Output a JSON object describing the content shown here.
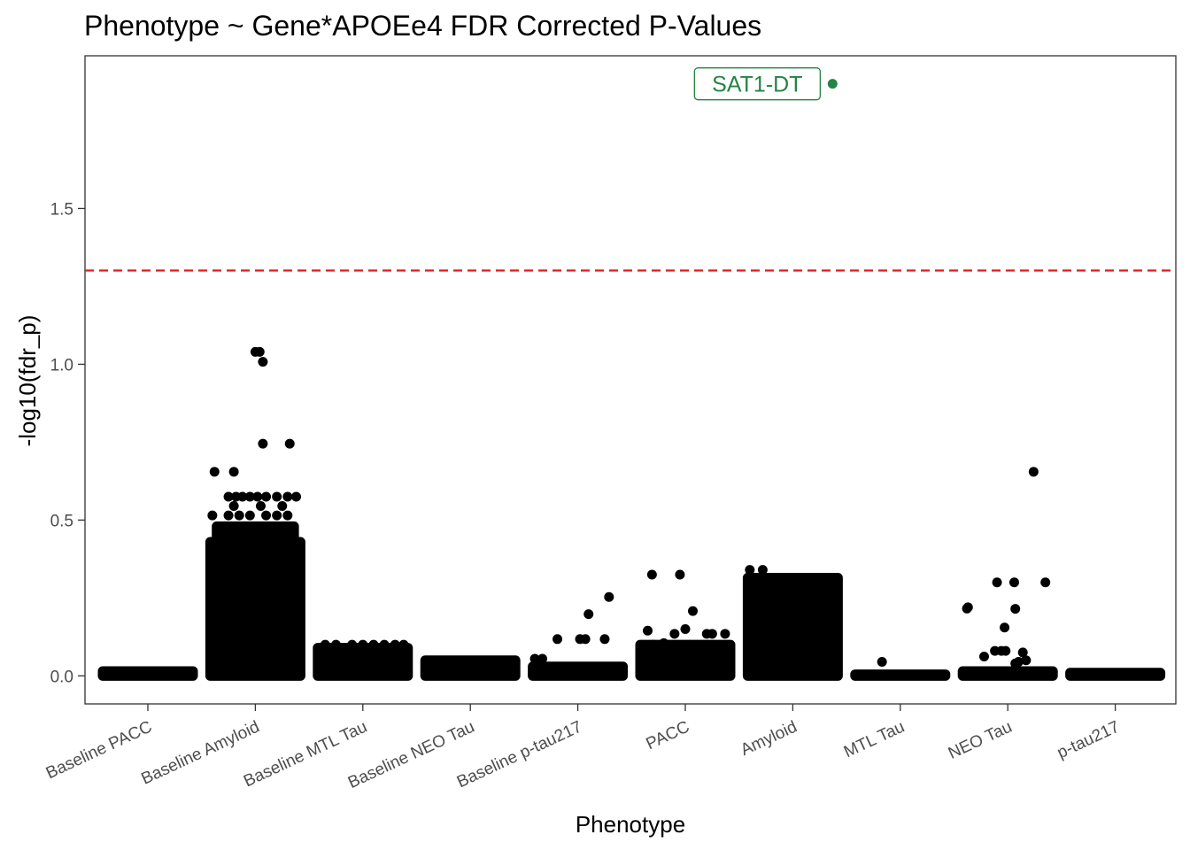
{
  "chart_data": {
    "type": "scatter",
    "title": "Phenotype ~ Gene*APOEe4 FDR Corrected P-Values",
    "xlabel": "Phenotype",
    "ylabel": "-log10(fdr_p)",
    "ylim": [
      -0.09,
      1.99
    ],
    "yticks": [
      0.0,
      0.5,
      1.0,
      1.5
    ],
    "ytick_labels": [
      "0.0",
      "0.5",
      "1.0",
      "1.5"
    ],
    "grid": false,
    "legend": "none",
    "categories": [
      "Baseline PACC",
      "Baseline Amyloid",
      "Baseline MTL Tau",
      "Baseline NEO Tau",
      "Baseline p-tau217",
      "PACC",
      "Amyloid",
      "MTL Tau",
      "NEO Tau",
      "p-tau217"
    ],
    "threshold": {
      "value": 1.301,
      "color": "#e31a1c",
      "style": "dashed"
    },
    "point_color": "#000000",
    "highlight_color": "#238443",
    "series": [
      {
        "category": "Baseline PACC",
        "mass": [
          {
            "ymin": 0.0,
            "ymax": 0.015,
            "jitter": 0.42
          }
        ],
        "points": []
      },
      {
        "category": "Baseline Amyloid",
        "mass": [
          {
            "ymin": 0.0,
            "ymax": 0.43,
            "jitter": 0.42
          },
          {
            "ymin": 0.43,
            "ymax": 0.48,
            "jitter": 0.36
          }
        ],
        "points": [
          {
            "dx": -0.25,
            "y": 0.575
          },
          {
            "dx": -0.18,
            "y": 0.575
          },
          {
            "dx": -0.12,
            "y": 0.575
          },
          {
            "dx": -0.05,
            "y": 0.575
          },
          {
            "dx": 0.02,
            "y": 0.575
          },
          {
            "dx": 0.1,
            "y": 0.575
          },
          {
            "dx": 0.2,
            "y": 0.575
          },
          {
            "dx": 0.3,
            "y": 0.575
          },
          {
            "dx": 0.38,
            "y": 0.575
          },
          {
            "dx": -0.2,
            "y": 0.545
          },
          {
            "dx": 0.05,
            "y": 0.545
          },
          {
            "dx": 0.25,
            "y": 0.545
          },
          {
            "dx": -0.4,
            "y": 0.515
          },
          {
            "dx": -0.25,
            "y": 0.515
          },
          {
            "dx": -0.15,
            "y": 0.515
          },
          {
            "dx": -0.05,
            "y": 0.515
          },
          {
            "dx": 0.1,
            "y": 0.515
          },
          {
            "dx": 0.2,
            "y": 0.515
          },
          {
            "dx": 0.3,
            "y": 0.515
          },
          {
            "dx": -0.38,
            "y": 0.655
          },
          {
            "dx": -0.2,
            "y": 0.655
          },
          {
            "dx": 0.07,
            "y": 0.745
          },
          {
            "dx": 0.32,
            "y": 0.745
          },
          {
            "dx": 0.0,
            "y": 1.04
          },
          {
            "dx": 0.04,
            "y": 1.04
          },
          {
            "dx": 0.07,
            "y": 1.008
          }
        ]
      },
      {
        "category": "Baseline MTL Tau",
        "mass": [
          {
            "ymin": 0.0,
            "ymax": 0.09,
            "jitter": 0.42
          }
        ],
        "points": [
          {
            "dx": -0.35,
            "y": 0.1
          },
          {
            "dx": -0.25,
            "y": 0.1
          },
          {
            "dx": -0.1,
            "y": 0.1
          },
          {
            "dx": 0.0,
            "y": 0.1
          },
          {
            "dx": 0.1,
            "y": 0.1
          },
          {
            "dx": 0.2,
            "y": 0.1
          },
          {
            "dx": 0.3,
            "y": 0.1
          },
          {
            "dx": 0.38,
            "y": 0.1
          }
        ]
      },
      {
        "category": "Baseline NEO Tau",
        "mass": [
          {
            "ymin": 0.0,
            "ymax": 0.05,
            "jitter": 0.42
          }
        ],
        "points": []
      },
      {
        "category": "Baseline p-tau217",
        "mass": [
          {
            "ymin": 0.0,
            "ymax": 0.03,
            "jitter": 0.42
          }
        ],
        "points": [
          {
            "dx": -0.4,
            "y": 0.055
          },
          {
            "dx": -0.33,
            "y": 0.055
          },
          {
            "dx": -0.19,
            "y": 0.118
          },
          {
            "dx": 0.02,
            "y": 0.118
          },
          {
            "dx": 0.07,
            "y": 0.118
          },
          {
            "dx": 0.25,
            "y": 0.118
          },
          {
            "dx": 0.1,
            "y": 0.198
          },
          {
            "dx": 0.29,
            "y": 0.253
          }
        ]
      },
      {
        "category": "PACC",
        "mass": [
          {
            "ymin": 0.0,
            "ymax": 0.1,
            "jitter": 0.42
          }
        ],
        "points": [
          {
            "dx": -0.35,
            "y": 0.145
          },
          {
            "dx": -0.3,
            "y": 0.1
          },
          {
            "dx": -0.2,
            "y": 0.105
          },
          {
            "dx": -0.1,
            "y": 0.135
          },
          {
            "dx": 0.0,
            "y": 0.15
          },
          {
            "dx": 0.07,
            "y": 0.208
          },
          {
            "dx": 0.2,
            "y": 0.135
          },
          {
            "dx": 0.25,
            "y": 0.135
          },
          {
            "dx": 0.37,
            "y": 0.135
          },
          {
            "dx": -0.31,
            "y": 0.325
          },
          {
            "dx": -0.05,
            "y": 0.325
          }
        ]
      },
      {
        "category": "Amyloid",
        "mass": [
          {
            "ymin": 0.0,
            "ymax": 0.315,
            "jitter": 0.42
          }
        ],
        "points": [
          {
            "dx": -0.4,
            "y": 0.34
          },
          {
            "dx": -0.28,
            "y": 0.34
          }
        ]
      },
      {
        "category": "MTL Tau",
        "mass": [
          {
            "ymin": 0.0,
            "ymax": 0.005,
            "jitter": 0.42
          }
        ],
        "points": [
          {
            "dx": -0.17,
            "y": 0.045
          }
        ]
      },
      {
        "category": "NEO Tau",
        "mass": [
          {
            "ymin": 0.0,
            "ymax": 0.015,
            "jitter": 0.42
          }
        ],
        "points": [
          {
            "dx": -0.37,
            "y": 0.22
          },
          {
            "dx": -0.38,
            "y": 0.216
          },
          {
            "dx": -0.22,
            "y": 0.062
          },
          {
            "dx": -0.12,
            "y": 0.08
          },
          {
            "dx": -0.06,
            "y": 0.08
          },
          {
            "dx": -0.02,
            "y": 0.08
          },
          {
            "dx": -0.1,
            "y": 0.3
          },
          {
            "dx": -0.03,
            "y": 0.155
          },
          {
            "dx": 0.07,
            "y": 0.04
          },
          {
            "dx": 0.1,
            "y": 0.045
          },
          {
            "dx": 0.17,
            "y": 0.05
          },
          {
            "dx": 0.14,
            "y": 0.075
          },
          {
            "dx": 0.07,
            "y": 0.215
          },
          {
            "dx": 0.06,
            "y": 0.3
          },
          {
            "dx": 0.35,
            "y": 0.3
          },
          {
            "dx": 0.24,
            "y": 0.655
          }
        ]
      },
      {
        "category": "p-tau217",
        "mass": [
          {
            "ymin": 0.0,
            "ymax": 0.01,
            "jitter": 0.42
          }
        ],
        "points": []
      }
    ],
    "annotations": [
      {
        "category": "Amyloid",
        "dx": 0.37,
        "y": 1.9,
        "label": "SAT1-DT",
        "label_dx": -0.7
      }
    ]
  }
}
